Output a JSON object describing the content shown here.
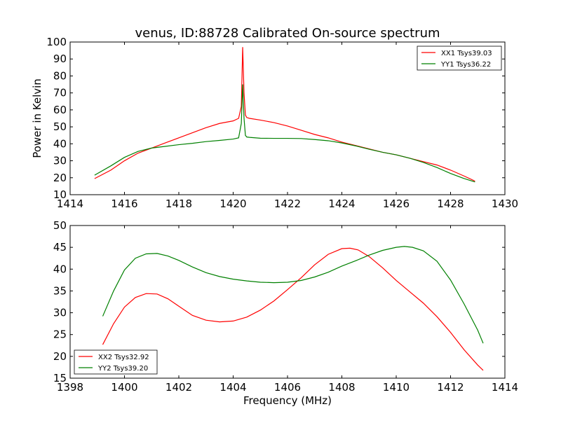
{
  "chart_data": [
    {
      "type": "line",
      "title": "venus, ID:88728 Calibrated On-source spectrum",
      "xlabel": "",
      "ylabel": "Power in Kelvin",
      "xlim": [
        1414,
        1430
      ],
      "ylim": [
        10,
        100
      ],
      "xticks": [
        1414,
        1416,
        1418,
        1420,
        1422,
        1424,
        1426,
        1428,
        1430
      ],
      "yticks": [
        10,
        20,
        30,
        40,
        50,
        60,
        70,
        80,
        90,
        100
      ],
      "legend_position": "top-right",
      "series": [
        {
          "name": "XX1 Tsys39.03",
          "color": "#ff0000",
          "x": [
            1414.9,
            1415.5,
            1416,
            1416.5,
            1417,
            1417.5,
            1418,
            1418.5,
            1419,
            1419.5,
            1420,
            1420.2,
            1420.3,
            1420.35,
            1420.4,
            1420.45,
            1420.5,
            1420.6,
            1421,
            1421.5,
            1422,
            1422.5,
            1423,
            1423.5,
            1424,
            1424.5,
            1425,
            1425.5,
            1426,
            1426.5,
            1427,
            1427.5,
            1428,
            1428.5,
            1428.9
          ],
          "y": [
            19.5,
            24.5,
            30,
            34.5,
            37.5,
            40.5,
            43.5,
            46.5,
            49.5,
            52,
            53.5,
            55,
            62,
            97,
            70,
            57,
            55.5,
            55,
            54,
            52.5,
            50.5,
            48,
            45.5,
            43.5,
            41,
            39,
            37,
            35,
            33.5,
            31.5,
            29.5,
            27.5,
            24.5,
            21,
            18
          ]
        },
        {
          "name": "YY1 Tsys36.22",
          "color": "#008000",
          "x": [
            1414.9,
            1415.5,
            1416,
            1416.5,
            1417,
            1417.5,
            1418,
            1418.5,
            1419,
            1419.5,
            1420,
            1420.2,
            1420.3,
            1420.35,
            1420.4,
            1420.45,
            1420.5,
            1420.6,
            1421,
            1421.5,
            1422,
            1422.5,
            1423,
            1423.5,
            1424,
            1424.5,
            1425,
            1425.5,
            1426,
            1426.5,
            1427,
            1427.5,
            1428,
            1428.5,
            1428.9
          ],
          "y": [
            21.5,
            27,
            32,
            35.5,
            37.5,
            38.5,
            39.5,
            40.3,
            41.3,
            42,
            42.8,
            43.5,
            52,
            75,
            55,
            45,
            44,
            43.8,
            43.3,
            43.2,
            43.2,
            43.1,
            42.5,
            41.8,
            40.5,
            38.8,
            36.8,
            35,
            33.5,
            31.5,
            29,
            26,
            22.5,
            19.5,
            17.5
          ]
        }
      ]
    },
    {
      "type": "line",
      "title": "",
      "xlabel": "Frequency (MHz)",
      "ylabel": "",
      "xlim": [
        1398,
        1414
      ],
      "ylim": [
        15,
        50
      ],
      "xticks": [
        1398,
        1400,
        1402,
        1404,
        1406,
        1408,
        1410,
        1412,
        1414
      ],
      "yticks": [
        15,
        20,
        25,
        30,
        35,
        40,
        45,
        50
      ],
      "legend_position": "bottom-left",
      "series": [
        {
          "name": "XX2 Tsys32.92",
          "color": "#ff0000",
          "x": [
            1399.2,
            1399.6,
            1400,
            1400.4,
            1400.8,
            1401.2,
            1401.6,
            1402,
            1402.5,
            1403,
            1403.5,
            1404,
            1404.5,
            1405,
            1405.5,
            1406,
            1406.5,
            1407,
            1407.5,
            1408,
            1408.3,
            1408.6,
            1409,
            1409.5,
            1410,
            1410.5,
            1411,
            1411.5,
            1412,
            1412.5,
            1413,
            1413.2
          ],
          "y": [
            22.7,
            27.5,
            31.3,
            33.5,
            34.4,
            34.3,
            33.2,
            31.5,
            29.4,
            28.3,
            27.9,
            28.1,
            29,
            30.6,
            32.7,
            35.3,
            38,
            41,
            43.4,
            44.7,
            44.8,
            44.4,
            42.9,
            40.3,
            37.4,
            34.8,
            32.2,
            29.1,
            25.5,
            21.5,
            18,
            16.8
          ]
        },
        {
          "name": "YY2 Tsys39.20",
          "color": "#008000",
          "x": [
            1399.2,
            1399.6,
            1400,
            1400.4,
            1400.8,
            1401.2,
            1401.6,
            1402,
            1402.5,
            1403,
            1403.5,
            1404,
            1404.5,
            1405,
            1405.5,
            1406,
            1406.5,
            1407,
            1407.5,
            1408,
            1408.5,
            1409,
            1409.5,
            1410,
            1410.3,
            1410.6,
            1411,
            1411.5,
            1412,
            1412.5,
            1413,
            1413.2
          ],
          "y": [
            29.2,
            35,
            39.8,
            42.5,
            43.5,
            43.6,
            43,
            42,
            40.5,
            39.2,
            38.3,
            37.7,
            37.3,
            37.0,
            36.9,
            37.0,
            37.4,
            38.2,
            39.3,
            40.7,
            41.9,
            43.2,
            44.3,
            45.0,
            45.2,
            45.0,
            44.2,
            41.8,
            37.5,
            32,
            26,
            23
          ]
        }
      ]
    }
  ]
}
